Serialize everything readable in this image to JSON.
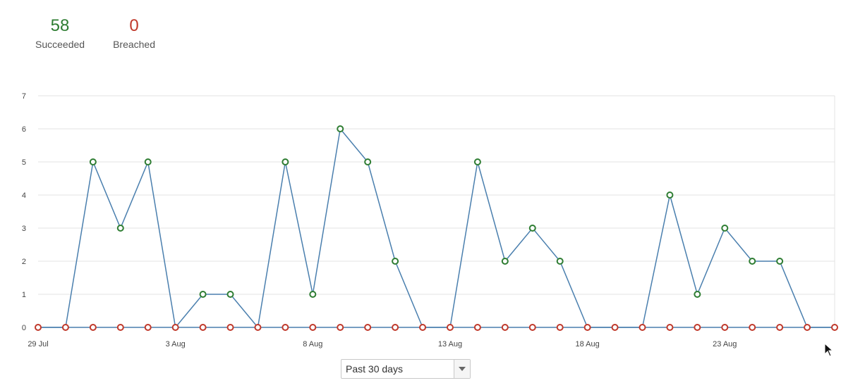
{
  "summary": {
    "succeeded": {
      "value": "58",
      "label": "Succeeded",
      "color": "#2e7d32"
    },
    "breached": {
      "value": "0",
      "label": "Breached",
      "color": "#c0392b"
    }
  },
  "range_select": {
    "selected": "Past 30 days",
    "arrow_icon": "caret-down-icon"
  },
  "colors": {
    "line": "#4a7fae",
    "succeeded_marker": "#2e7d32",
    "breached_marker": "#c0392b",
    "grid": "#e3e3e3",
    "axis_text": "#444444"
  },
  "chart_data": {
    "type": "line",
    "x": [
      "29 Jul",
      "30 Jul",
      "31 Jul",
      "1 Aug",
      "2 Aug",
      "3 Aug",
      "4 Aug",
      "5 Aug",
      "6 Aug",
      "7 Aug",
      "8 Aug",
      "9 Aug",
      "10 Aug",
      "11 Aug",
      "12 Aug",
      "13 Aug",
      "14 Aug",
      "15 Aug",
      "16 Aug",
      "17 Aug",
      "18 Aug",
      "19 Aug",
      "20 Aug",
      "21 Aug",
      "22 Aug",
      "23 Aug",
      "24 Aug",
      "25 Aug",
      "26 Aug",
      "27 Aug"
    ],
    "x_tick_labels": [
      "29 Jul",
      "3 Aug",
      "8 Aug",
      "13 Aug",
      "18 Aug",
      "23 Aug"
    ],
    "ylim": [
      0,
      7
    ],
    "y_ticks": [
      "0",
      "1",
      "2",
      "3",
      "4",
      "5",
      "6",
      "7"
    ],
    "grid": true,
    "series": [
      {
        "key": "succeeded",
        "values": [
          0,
          0,
          5,
          3,
          5,
          0,
          1,
          1,
          0,
          5,
          1,
          6,
          5,
          2,
          0,
          0,
          5,
          2,
          3,
          2,
          0,
          0,
          0,
          4,
          1,
          3,
          2,
          2,
          0,
          0
        ]
      },
      {
        "key": "breached",
        "values": [
          0,
          0,
          0,
          0,
          0,
          0,
          0,
          0,
          0,
          0,
          0,
          0,
          0,
          0,
          0,
          0,
          0,
          0,
          0,
          0,
          0,
          0,
          0,
          0,
          0,
          0,
          0,
          0,
          0,
          0
        ]
      }
    ]
  }
}
